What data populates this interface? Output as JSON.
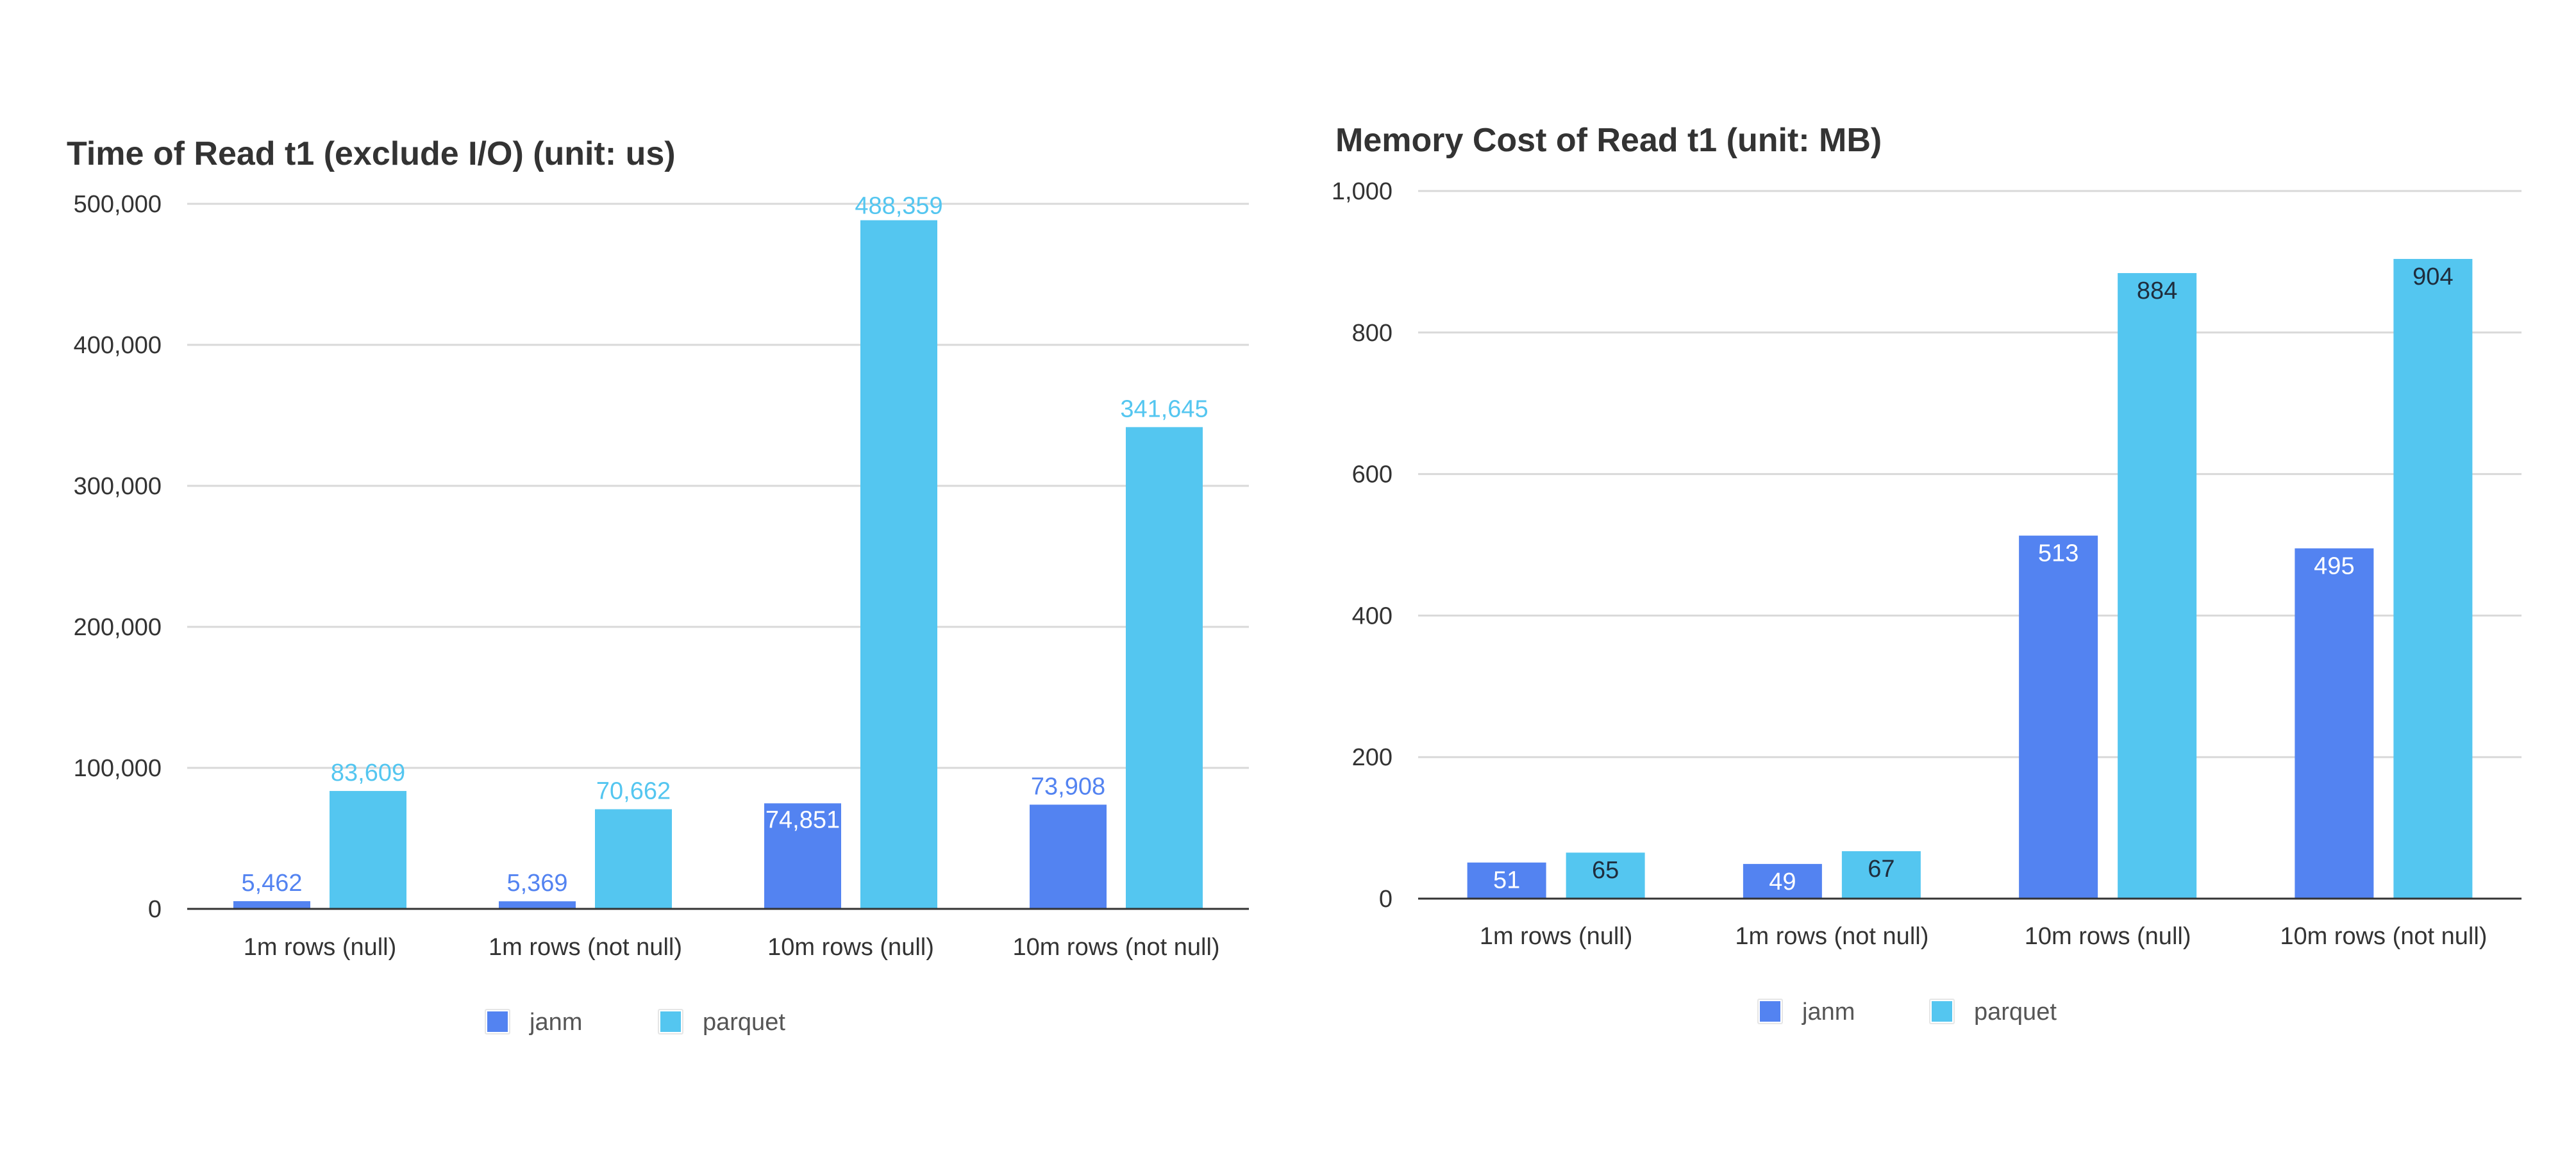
{
  "colors": {
    "janm": "#5383F1",
    "parquet": "#54C6F0",
    "grid": "#D9D9D9",
    "axis": "#333333",
    "label_outside_janm": "#5383F1",
    "label_outside_parquet": "#54C6F0",
    "label_inside_light": "#FFFFFF",
    "label_inside_dark": "#1F2D3D"
  },
  "chart_data": [
    {
      "type": "bar",
      "title": "Time of Read t1 (exclude I/O) (unit: us)",
      "xlabel": "",
      "ylabel": "",
      "categories": [
        "1m rows (null)",
        "1m rows (not null)",
        "10m rows (null)",
        "10m rows (not null)"
      ],
      "series": [
        {
          "name": "janm",
          "values": [
            5462,
            5369,
            74851,
            73908
          ]
        },
        {
          "name": "parquet",
          "values": [
            83609,
            70662,
            488359,
            341645
          ]
        }
      ],
      "data_labels": {
        "janm": [
          "5,462",
          "5,369",
          "74,851",
          "73,908"
        ],
        "parquet": [
          "83,609",
          "70,662",
          "488,359",
          "341,645"
        ]
      },
      "ylim": [
        0,
        500000
      ],
      "yticks": [
        0,
        100000,
        200000,
        300000,
        400000,
        500000
      ],
      "ytick_labels": [
        "0",
        "100,000",
        "200,000",
        "300,000",
        "400,000",
        "500,000"
      ],
      "grid": true,
      "legend": "bottom-center",
      "label_position": "outside"
    },
    {
      "type": "bar",
      "title": "Memory Cost of Read t1 (unit: MB)",
      "xlabel": "",
      "ylabel": "",
      "categories": [
        "1m rows (null)",
        "1m rows (not null)",
        "10m rows (null)",
        "10m rows (not null)"
      ],
      "series": [
        {
          "name": "janm",
          "values": [
            51,
            49,
            513,
            495
          ]
        },
        {
          "name": "parquet",
          "values": [
            65,
            67,
            884,
            904
          ]
        }
      ],
      "data_labels": {
        "janm": [
          "51",
          "49",
          "513",
          "495"
        ],
        "parquet": [
          "65",
          "67",
          "884",
          "904"
        ]
      },
      "ylim": [
        0,
        1000
      ],
      "yticks": [
        0,
        200,
        400,
        600,
        800,
        1000
      ],
      "ytick_labels": [
        "0",
        "200",
        "400",
        "600",
        "800",
        "1,000"
      ],
      "grid": true,
      "legend": "bottom-center",
      "label_position": "inside-top"
    }
  ]
}
